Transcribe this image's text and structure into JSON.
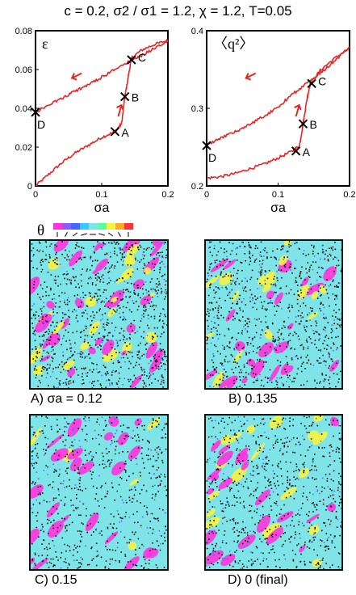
{
  "figure": {
    "title": {
      "c": "c = 0.2,",
      "ratio": "σ2 / σ1 = 1.2,",
      "chi": "χ = 1.2,",
      "T": "T=0.05"
    },
    "theta_legend": {
      "symbol": "θ"
    },
    "captions": {
      "A": "A) σa = 0.12",
      "B": "B)  0.135",
      "C": "C)  0.15",
      "D": "D)  0 (final)"
    }
  },
  "chart_data": [
    {
      "type": "line",
      "ylabel": "ε",
      "xlabel": "σa",
      "xlim": [
        0,
        0.2
      ],
      "ylim": [
        0,
        0.08
      ],
      "xticks": [
        0,
        0.1,
        0.2
      ],
      "yticks": [
        0,
        0.02,
        0.04,
        0.06,
        0.08
      ],
      "series": [
        {
          "x": [
            0,
            0.02,
            0.04,
            0.06,
            0.08,
            0.1,
            0.12,
            0.13,
            0.135,
            0.14,
            0.145,
            0.16,
            0.18,
            0.2
          ],
          "y": [
            0,
            0.006,
            0.012,
            0.017,
            0.021,
            0.025,
            0.028,
            0.032,
            0.046,
            0.056,
            0.066,
            0.07,
            0.073,
            0.075
          ]
        },
        {
          "x": [
            0.2,
            0.18,
            0.16,
            0.14,
            0.12,
            0.1,
            0.08,
            0.06,
            0.04,
            0.02,
            0
          ],
          "y": [
            0.075,
            0.071,
            0.067,
            0.064,
            0.06,
            0.056,
            0.052,
            0.049,
            0.045,
            0.042,
            0.038
          ]
        }
      ],
      "points": [
        {
          "label": "A",
          "x": 0.12,
          "y": 0.028
        },
        {
          "label": "B",
          "x": 0.135,
          "y": 0.046
        },
        {
          "label": "C",
          "x": 0.145,
          "y": 0.065
        },
        {
          "label": "D",
          "x": 0.0,
          "y": 0.038
        }
      ]
    },
    {
      "type": "line",
      "ylabel": "〈q²〉",
      "xlabel": "σa",
      "xlim": [
        0,
        0.2
      ],
      "ylim": [
        0.2,
        0.4
      ],
      "xticks": [
        0,
        0.1,
        0.2
      ],
      "yticks": [
        0.2,
        0.3,
        0.4
      ],
      "series": [
        {
          "x": [
            0,
            0.02,
            0.04,
            0.06,
            0.08,
            0.1,
            0.12,
            0.13,
            0.135,
            0.14,
            0.145,
            0.16,
            0.18,
            0.2
          ],
          "y": [
            0.21,
            0.212,
            0.216,
            0.222,
            0.228,
            0.236,
            0.245,
            0.252,
            0.28,
            0.31,
            0.332,
            0.35,
            0.365,
            0.378
          ]
        },
        {
          "x": [
            0.2,
            0.18,
            0.16,
            0.14,
            0.12,
            0.1,
            0.08,
            0.06,
            0.04,
            0.02,
            0
          ],
          "y": [
            0.378,
            0.362,
            0.346,
            0.332,
            0.318,
            0.302,
            0.29,
            0.279,
            0.27,
            0.262,
            0.252
          ]
        }
      ],
      "points": [
        {
          "label": "A",
          "x": 0.125,
          "y": 0.245
        },
        {
          "label": "B",
          "x": 0.135,
          "y": 0.28
        },
        {
          "label": "C",
          "x": 0.147,
          "y": 0.332
        },
        {
          "label": "D",
          "x": 0.0,
          "y": 0.252
        }
      ]
    }
  ],
  "colors": {
    "curve": "#ee2222",
    "cyan": "#7fe4e8",
    "magenta": "#ff33dd",
    "yellow": "#f7f240",
    "black": "#111111",
    "blue": "#4466ff"
  }
}
